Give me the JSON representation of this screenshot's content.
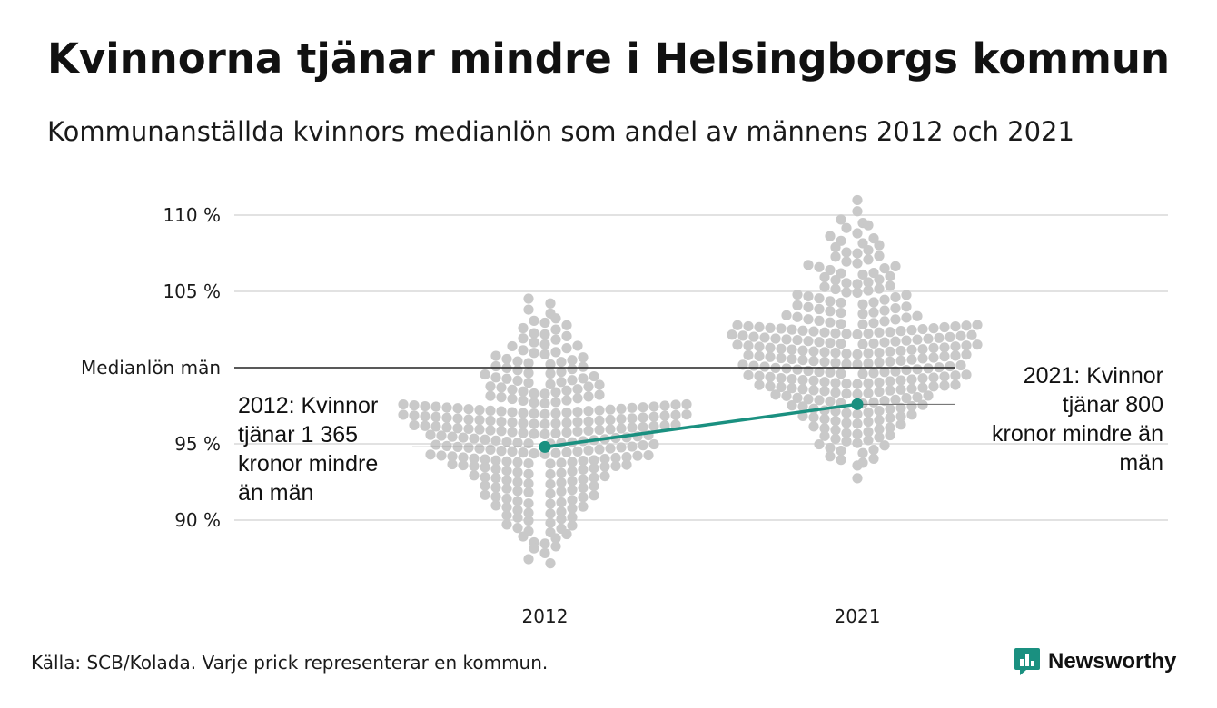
{
  "colors": {
    "accent": "#1a9080",
    "dots": "#c9c9c9",
    "grid": "#e2e2e2",
    "reference": "#222222"
  },
  "chart_data": {
    "type": "scatter",
    "title": "Kvinnorna tjänar mindre i Helsingborgs kommun",
    "subtitle": "Kommunanställda kvinnors medianlön som andel av männens 2012 och 2021",
    "categories": [
      "2012",
      "2021"
    ],
    "ylim": [
      86,
      112
    ],
    "y_ticks": [
      {
        "value": 90,
        "label": "90 %"
      },
      {
        "value": 95,
        "label": "95 %"
      },
      {
        "value": 105,
        "label": "105 %"
      },
      {
        "value": 110,
        "label": "110 %"
      }
    ],
    "reference_line": {
      "value": 100,
      "label": "Medianlön män"
    },
    "grid": true,
    "distributions": [
      {
        "category": "2012",
        "min": 86.5,
        "q1": 93.5,
        "median": 95.8,
        "q3": 97.6,
        "max": 105.2
      },
      {
        "category": "2021",
        "min": 92.6,
        "q1": 98.5,
        "median": 100.8,
        "q3": 102.9,
        "max": 111.4
      }
    ],
    "series": [
      {
        "name": "Helsingborg",
        "points": [
          {
            "x": "2012",
            "y": 94.8,
            "label": "2012: Kvinnor tjänar 1 365 kronor mindre än män"
          },
          {
            "x": "2021",
            "y": 97.6,
            "label": "2021: Kvinnor tjänar 800 kronor mindre än män"
          }
        ]
      }
    ]
  },
  "source": "Källa: SCB/Kolada. Varje prick representerar en kommun.",
  "brand": {
    "name": "Newsworthy",
    "icon": "newsworthy-logo-icon"
  }
}
